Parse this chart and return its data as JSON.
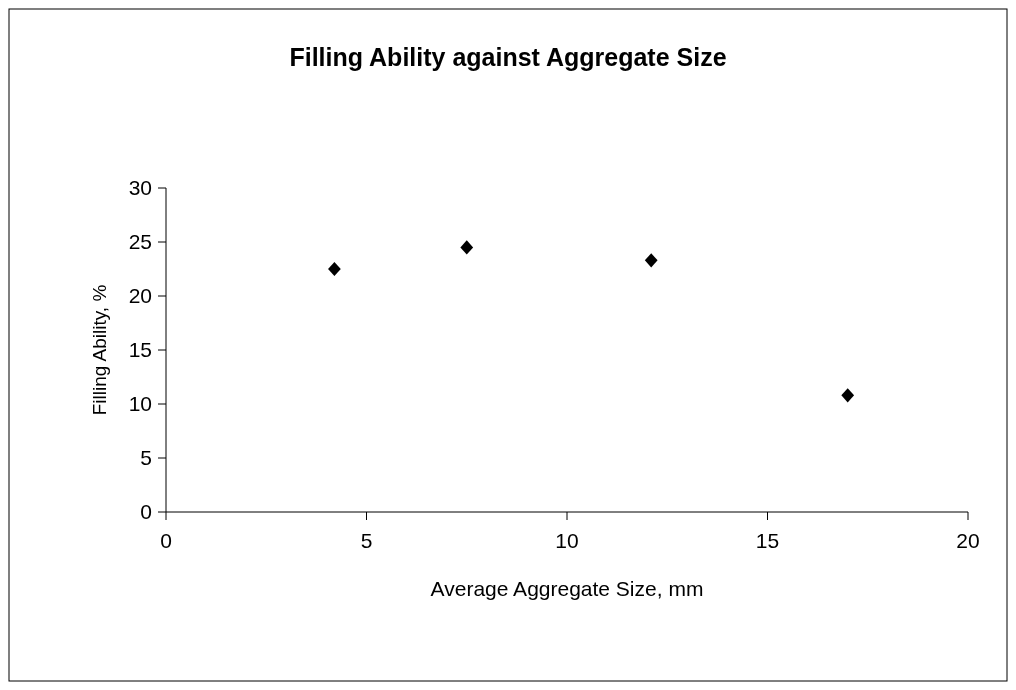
{
  "chart_data": {
    "type": "scatter",
    "title": "Filling Ability against Aggregate Size",
    "xlabel": "Average Aggregate Size, mm",
    "ylabel": "Filling Ability, %",
    "x": [
      4.2,
      7.5,
      12.1,
      17.0
    ],
    "series": [
      {
        "color": "#000000",
        "values": [
          22.5,
          24.5,
          23.3,
          10.8
        ]
      }
    ],
    "xlim": [
      0,
      20
    ],
    "xticks": [
      0,
      5,
      10,
      15,
      20
    ],
    "ylim": [
      0,
      30
    ],
    "yticks": [
      0,
      5,
      10,
      15,
      20,
      25,
      30
    ],
    "marker": "diamond"
  }
}
